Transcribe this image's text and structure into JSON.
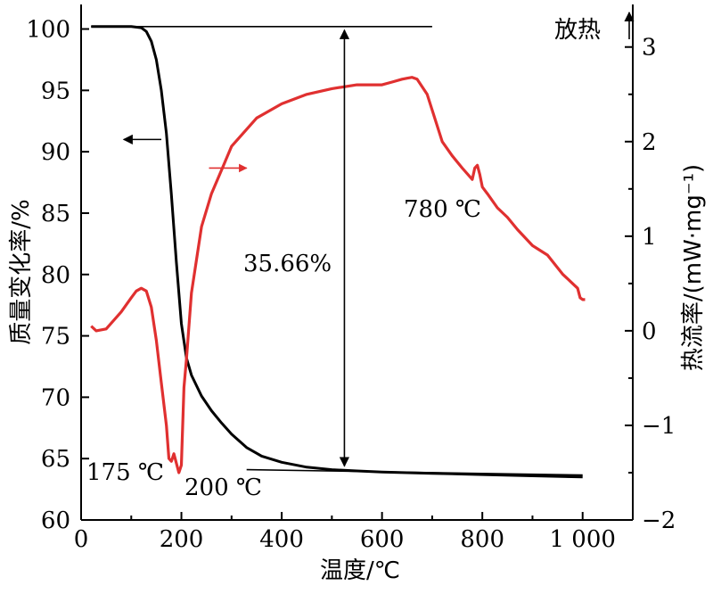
{
  "chart_data": {
    "type": "line",
    "xlabel": "温度/℃",
    "ylabel_left": "质量变化率/%",
    "ylabel_right": "热流率/(mW·mg⁻¹)",
    "exo_label": "放热",
    "x_ticks": [
      0,
      200,
      400,
      600,
      800,
      1000
    ],
    "x_tick_labels": [
      "0",
      "200",
      "400",
      "600",
      "800",
      "1 000"
    ],
    "xlim": [
      0,
      1100
    ],
    "ylim_left": [
      60,
      102
    ],
    "y_left_ticks": [
      60,
      65,
      70,
      75,
      80,
      85,
      90,
      95,
      100
    ],
    "ylim_right": [
      -2,
      3.45
    ],
    "y_right_ticks": [
      -2,
      -1,
      0,
      1,
      2,
      3
    ],
    "y_right_tick_labels": [
      "−2",
      "−1",
      "0",
      "1",
      "2",
      "3"
    ],
    "series": [
      {
        "axis": "left",
        "color": "#000000",
        "x": [
          20,
          60,
          100,
          120,
          130,
          140,
          150,
          160,
          170,
          180,
          190,
          200,
          210,
          220,
          240,
          260,
          280,
          300,
          330,
          360,
          400,
          450,
          500,
          550,
          600,
          700,
          800,
          900,
          1000
        ],
        "values": [
          100.2,
          100.2,
          100.2,
          100.1,
          99.8,
          99.0,
          97.5,
          95.0,
          91.5,
          86.5,
          81.0,
          76.0,
          73.2,
          71.8,
          70.1,
          68.9,
          67.9,
          67.0,
          65.9,
          65.2,
          64.7,
          64.3,
          64.1,
          64.0,
          63.9,
          63.8,
          63.7,
          63.6,
          63.5
        ]
      },
      {
        "axis": "right",
        "color": "#e03030",
        "x": [
          20,
          30,
          50,
          80,
          100,
          110,
          120,
          130,
          140,
          150,
          160,
          170,
          175,
          180,
          185,
          190,
          195,
          200,
          205,
          210,
          220,
          240,
          260,
          280,
          300,
          350,
          400,
          450,
          500,
          550,
          600,
          620,
          640,
          650,
          660,
          670,
          690,
          720,
          740,
          760,
          780,
          785,
          790,
          795,
          800,
          810,
          830,
          850,
          870,
          900,
          930,
          960,
          980,
          990,
          995,
          1000,
          1005
        ],
        "values": [
          0.05,
          0.0,
          0.02,
          0.2,
          0.35,
          0.42,
          0.45,
          0.42,
          0.25,
          -0.1,
          -0.55,
          -1.0,
          -1.35,
          -1.38,
          -1.3,
          -1.4,
          -1.5,
          -1.42,
          -0.6,
          -0.3,
          0.4,
          1.1,
          1.45,
          1.7,
          1.95,
          2.25,
          2.4,
          2.5,
          2.56,
          2.6,
          2.6,
          2.63,
          2.66,
          2.67,
          2.68,
          2.66,
          2.5,
          2.0,
          1.85,
          1.72,
          1.6,
          1.72,
          1.75,
          1.65,
          1.52,
          1.45,
          1.3,
          1.2,
          1.07,
          0.9,
          0.8,
          0.6,
          0.5,
          0.45,
          0.35,
          0.33,
          0.33
        ]
      }
    ],
    "annotations": {
      "peak1": "175 ℃",
      "peak2": "200 ℃",
      "peak3": "780 ℃",
      "mass_loss": "35.66%"
    }
  }
}
